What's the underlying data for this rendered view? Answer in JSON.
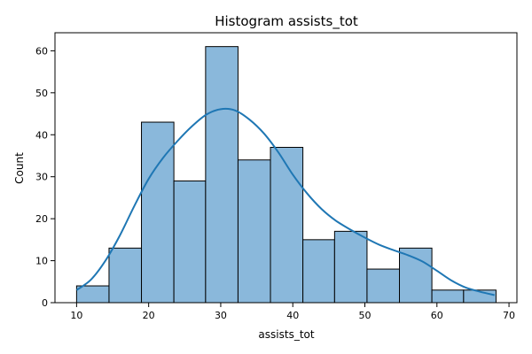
{
  "chart_data": {
    "type": "bar",
    "title": "Histogram assists_tot",
    "xlabel": "assists_tot",
    "ylabel": "Count",
    "xlim": [
      7,
      71.1
    ],
    "ylim": [
      0,
      64.3
    ],
    "xticks": [
      10,
      20,
      30,
      40,
      50,
      60,
      70
    ],
    "yticks": [
      0,
      10,
      20,
      30,
      40,
      50,
      60
    ],
    "bins": [
      {
        "start": 10.0,
        "end": 14.5,
        "count": 4
      },
      {
        "start": 14.5,
        "end": 19.0,
        "count": 13
      },
      {
        "start": 19.0,
        "end": 23.5,
        "count": 43
      },
      {
        "start": 23.5,
        "end": 27.9,
        "count": 29
      },
      {
        "start": 27.9,
        "end": 32.4,
        "count": 61
      },
      {
        "start": 32.4,
        "end": 36.9,
        "count": 34
      },
      {
        "start": 36.9,
        "end": 41.4,
        "count": 37
      },
      {
        "start": 41.4,
        "end": 45.8,
        "count": 15
      },
      {
        "start": 45.8,
        "end": 50.3,
        "count": 17
      },
      {
        "start": 50.3,
        "end": 54.8,
        "count": 8
      },
      {
        "start": 54.8,
        "end": 59.3,
        "count": 13
      },
      {
        "start": 59.3,
        "end": 63.7,
        "count": 3
      },
      {
        "start": 63.7,
        "end": 68.2,
        "count": 3
      }
    ],
    "kde": {
      "x": [
        10,
        12,
        14,
        16,
        18,
        20,
        22,
        24,
        26,
        28,
        30,
        32,
        34,
        36,
        38,
        40,
        42,
        44,
        46,
        48,
        50,
        52,
        54,
        56,
        58,
        60,
        62,
        64,
        66,
        68
      ],
      "y": [
        3,
        5.5,
        10,
        16,
        23,
        29.5,
        34.5,
        38.5,
        42,
        44.8,
        46.1,
        45.8,
        43.6,
        40.3,
        35.8,
        30.5,
        26,
        22.3,
        19.5,
        17.4,
        15.5,
        13.8,
        12.5,
        11.3,
        9.8,
        7.6,
        5.3,
        3.6,
        2.6,
        1.8
      ]
    },
    "bar_fill": "#8ab8db",
    "bar_edge": "#000000",
    "kde_color": "#1f77b4"
  }
}
